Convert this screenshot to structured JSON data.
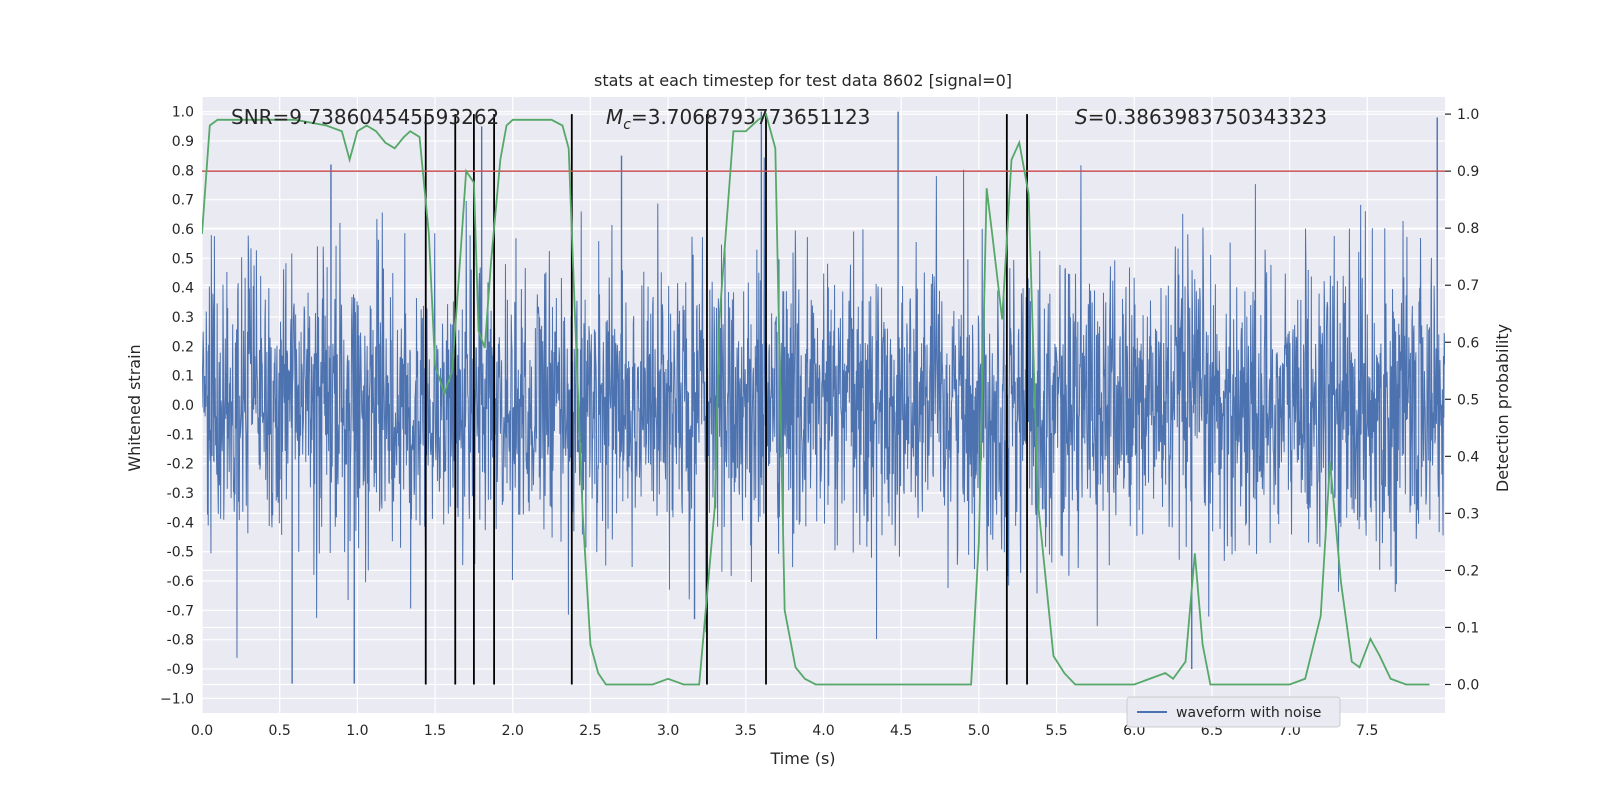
{
  "chart_data": {
    "type": "line",
    "title": "stats at each timestep for test data 8602 [signal=0]",
    "xlabel": "Time (s)",
    "ylabel_left": "Whitened strain",
    "ylabel_right": "Detection probability",
    "xlim": [
      0.0,
      8.0
    ],
    "ylim_left": [
      -1.05,
      1.05
    ],
    "ylim_right": [
      -0.05,
      1.03
    ],
    "x_ticks": [
      "0.0",
      "0.5",
      "1.0",
      "1.5",
      "2.0",
      "2.5",
      "3.0",
      "3.5",
      "4.0",
      "4.5",
      "5.0",
      "5.5",
      "6.0",
      "6.5",
      "7.0",
      "7.5"
    ],
    "y_ticks_left": [
      "1.0",
      "0.9",
      "0.8",
      "0.7",
      "0.6",
      "0.5",
      "0.4",
      "0.3",
      "0.2",
      "0.1",
      "0.0",
      "-0.1",
      "-0.2",
      "-0.3",
      "-0.4",
      "-0.5",
      "-0.6",
      "-0.7",
      "-0.8",
      "-0.9",
      "−1.0"
    ],
    "y_ticks_right": [
      "1.0",
      "0.9",
      "0.8",
      "0.7",
      "0.6",
      "0.5",
      "0.4",
      "0.3",
      "0.2",
      "0.1",
      "0.0"
    ],
    "grid": true,
    "legend_placement": "lower-center-right",
    "annotations": {
      "snr": "SNR=9.738604545593262",
      "mc_symbol": "M",
      "mc_subscript": "c",
      "mc_value": "=3.7068793773651123",
      "s_symbol": "S",
      "s_value": "=0.3863983750343323"
    },
    "threshold": {
      "axis": "right",
      "value": 0.9,
      "color": "#c44e52"
    },
    "vertical_lines": [
      1.44,
      1.63,
      1.75,
      1.88,
      2.38,
      3.25,
      3.63,
      5.18,
      5.31
    ],
    "series": [
      {
        "name": "waveform with noise",
        "axis": "left",
        "color": "#4c72b0",
        "kind": "noise-envelope",
        "x_range": [
          0.0,
          8.0
        ],
        "envelope_peaks_x": [
          0.58,
          0.83,
          0.98,
          1.8,
          2.7,
          3.17,
          3.6,
          4.48,
          6.37,
          7.95
        ],
        "envelope_peaks_y": [
          -0.95,
          0.82,
          -0.95,
          0.95,
          0.85,
          -0.73,
          1.0,
          1.0,
          -0.9,
          0.98
        ]
      },
      {
        "name": "",
        "axis": "right",
        "color": "#55a868",
        "x": [
          0.0,
          0.05,
          0.1,
          0.2,
          0.4,
          0.6,
          0.8,
          0.9,
          0.95,
          1.0,
          1.06,
          1.12,
          1.18,
          1.24,
          1.3,
          1.34,
          1.4,
          1.46,
          1.5,
          1.56,
          1.61,
          1.66,
          1.7,
          1.75,
          1.78,
          1.82,
          1.86,
          1.92,
          1.96,
          2.0,
          2.05,
          2.15,
          2.25,
          2.32,
          2.36,
          2.4,
          2.45,
          2.5,
          2.55,
          2.6,
          2.65,
          2.75,
          2.9,
          3.0,
          3.1,
          3.2,
          3.3,
          3.33,
          3.42,
          3.5,
          3.58,
          3.63,
          3.69,
          3.75,
          3.82,
          3.88,
          3.95,
          4.1,
          4.3,
          4.5,
          4.7,
          4.85,
          4.95,
          5.0,
          5.05,
          5.09,
          5.15,
          5.21,
          5.26,
          5.32,
          5.38,
          5.48,
          5.55,
          5.62,
          5.7,
          5.8,
          6.0,
          6.1,
          6.2,
          6.25,
          6.33,
          6.39,
          6.44,
          6.49,
          6.6,
          6.8,
          7.0,
          7.1,
          7.2,
          7.26,
          7.33,
          7.4,
          7.45,
          7.52,
          7.58,
          7.65,
          7.75,
          7.9
        ],
        "y": [
          0.79,
          0.98,
          0.99,
          0.99,
          0.99,
          0.99,
          0.98,
          0.97,
          0.92,
          0.97,
          0.98,
          0.97,
          0.95,
          0.94,
          0.96,
          0.97,
          0.96,
          0.79,
          0.56,
          0.51,
          0.55,
          0.74,
          0.9,
          0.88,
          0.62,
          0.59,
          0.74,
          0.92,
          0.98,
          0.99,
          0.99,
          0.99,
          0.99,
          0.98,
          0.94,
          0.65,
          0.3,
          0.07,
          0.02,
          0.0,
          0.0,
          0.0,
          0.0,
          0.01,
          0.0,
          0.0,
          0.31,
          0.64,
          0.97,
          0.97,
          0.99,
          1.0,
          0.94,
          0.13,
          0.03,
          0.01,
          0.0,
          0.0,
          0.0,
          0.0,
          0.0,
          0.0,
          0.0,
          0.25,
          0.87,
          0.78,
          0.64,
          0.92,
          0.95,
          0.86,
          0.32,
          0.05,
          0.02,
          0.0,
          0.0,
          0.0,
          0.0,
          0.01,
          0.02,
          0.01,
          0.04,
          0.23,
          0.07,
          0.0,
          0.0,
          0.0,
          0.0,
          0.01,
          0.12,
          0.39,
          0.18,
          0.04,
          0.03,
          0.08,
          0.05,
          0.01,
          0.0,
          0.0
        ]
      }
    ]
  }
}
